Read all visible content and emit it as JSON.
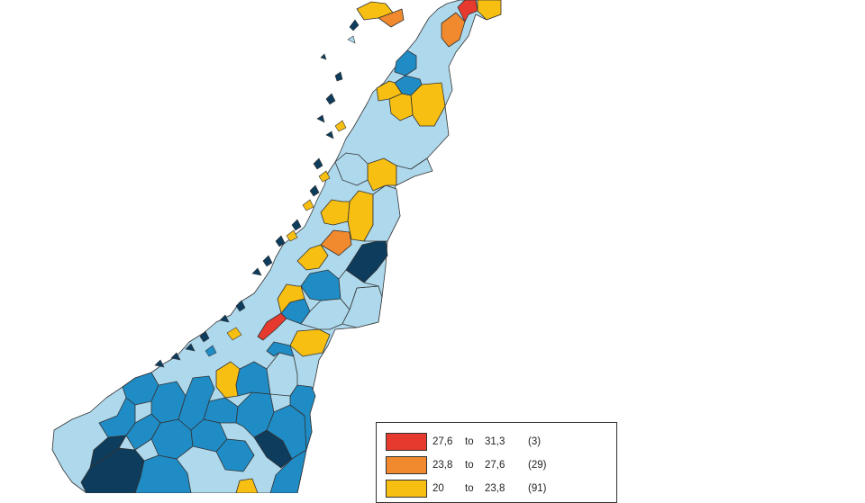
{
  "colors": {
    "class1": "#e53a2d",
    "class2": "#f18a2e",
    "class3": "#f7bf12",
    "class4": "#aed8ec",
    "class5": "#1f8cc6",
    "class6": "#0d3c5c",
    "border": "#333333",
    "background": "#ffffff"
  },
  "legend": {
    "items": [
      {
        "color": "#e53a2d",
        "low": "27,6",
        "to": "to",
        "high": "31,3",
        "count": "(3)"
      },
      {
        "color": "#f18a2e",
        "low": "23,8",
        "to": "to",
        "high": "27,6",
        "count": "(29)"
      },
      {
        "color": "#f7bf12",
        "low": "20",
        "to": "to",
        "high": "23,8",
        "count": "(91)"
      }
    ]
  }
}
